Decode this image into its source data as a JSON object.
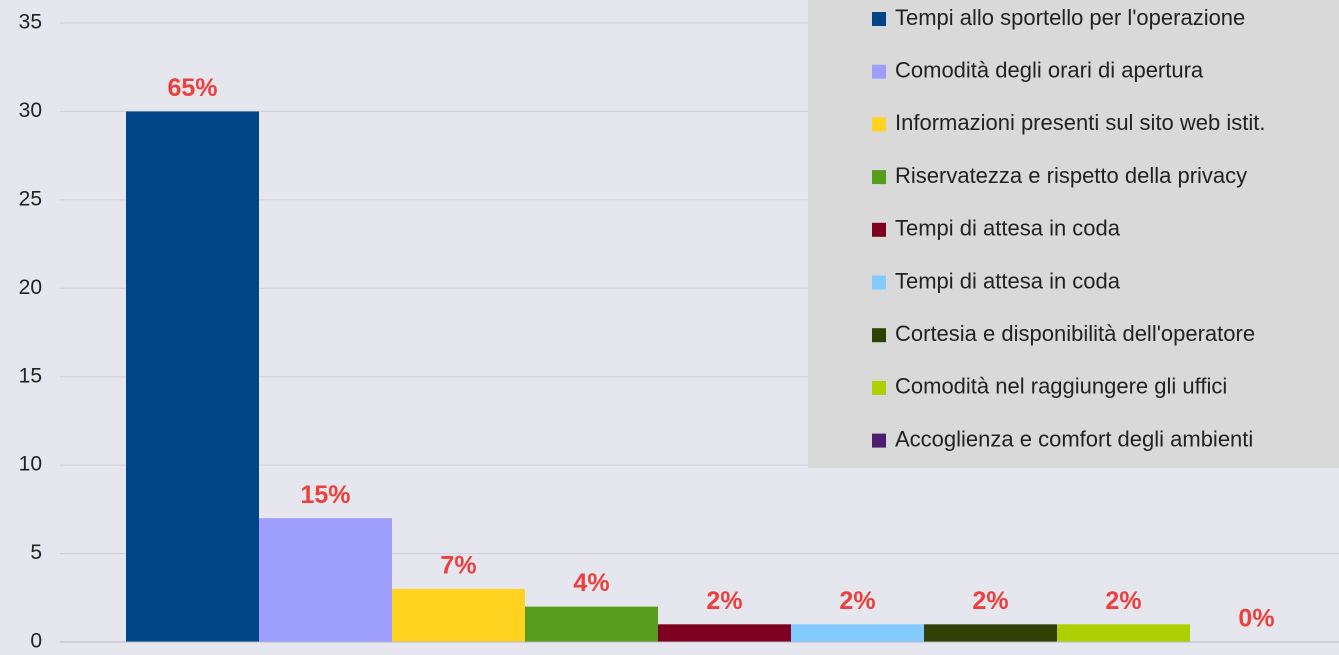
{
  "chart_data": {
    "type": "bar",
    "categories": [
      null
    ],
    "series": [
      {
        "name": "Tempi allo sportello per l'operazione",
        "color": "#004586",
        "values": [
          30
        ],
        "data_labels": [
          "65%"
        ]
      },
      {
        "name": "Comodità degli orari di apertura",
        "color": "#9e9eff",
        "values": [
          7
        ],
        "data_labels": [
          "15%"
        ]
      },
      {
        "name": "Informazioni presenti sul sito web istit.",
        "color": "#ffd320",
        "values": [
          3
        ],
        "data_labels": [
          "7%"
        ]
      },
      {
        "name": "Riservatezza e rispetto della privacy",
        "color": "#579d1c",
        "values": [
          2
        ],
        "data_labels": [
          "4%"
        ]
      },
      {
        "name": "Tempi di attesa in coda",
        "color": "#7e0021",
        "values": [
          1
        ],
        "data_labels": [
          "2%"
        ]
      },
      {
        "name": "Tempi di attesa in coda",
        "color": "#83caff",
        "values": [
          1
        ],
        "data_labels": [
          "2%"
        ]
      },
      {
        "name": "Cortesia e disponibilità dell'operatore",
        "color": "#314004",
        "values": [
          1
        ],
        "data_labels": [
          "2%"
        ]
      },
      {
        "name": "Comodità nel raggiungere gli uffici",
        "color": "#aecf00",
        "values": [
          1
        ],
        "data_labels": [
          "2%"
        ]
      },
      {
        "name": "Accoglienza e comfort degli ambienti",
        "color": "#4b1f6f",
        "values": [
          0
        ],
        "data_labels": [
          "0%"
        ]
      }
    ],
    "ylim": [
      0,
      35
    ],
    "yticks": [
      0,
      5,
      10,
      15,
      20,
      25,
      30,
      35
    ],
    "grid": true,
    "legend": "top-right"
  }
}
